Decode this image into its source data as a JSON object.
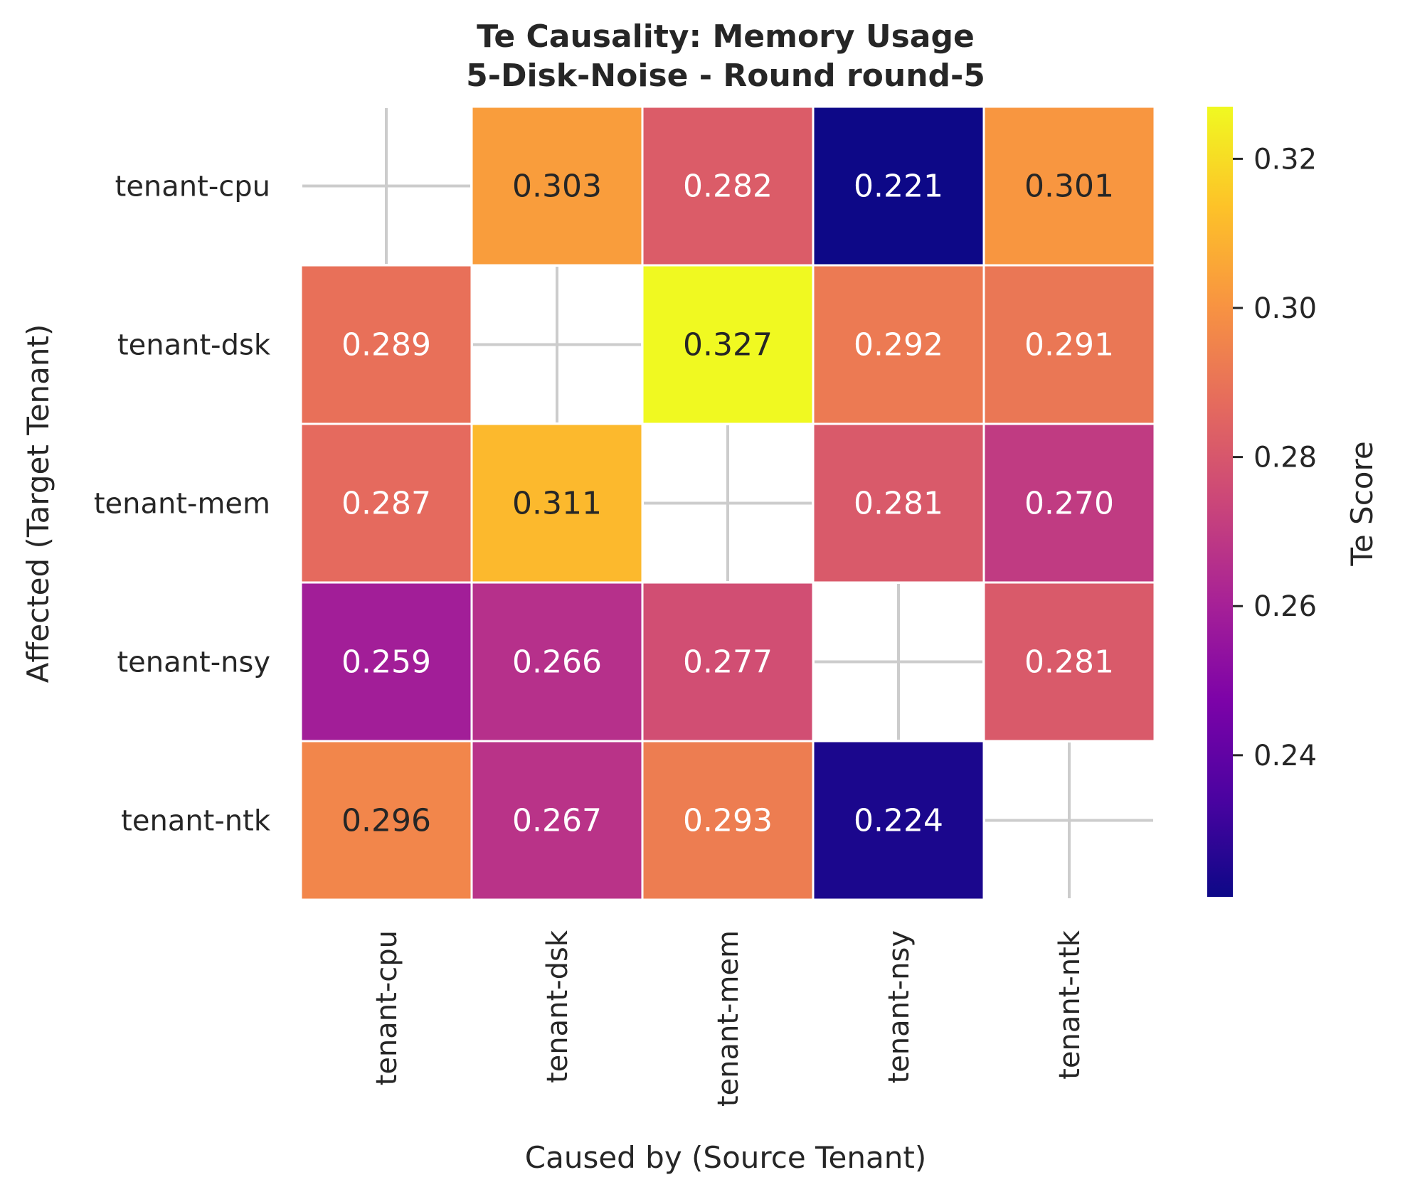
{
  "chart_data": {
    "type": "heatmap",
    "title": "Te Causality: Memory Usage",
    "subtitle": "5-Disk-Noise - Round round-5",
    "xlabel": "Caused by (Source Tenant)",
    "ylabel": "Affected (Target Tenant)",
    "x_categories": [
      "tenant-cpu",
      "tenant-dsk",
      "tenant-mem",
      "tenant-nsy",
      "tenant-ntk"
    ],
    "y_categories": [
      "tenant-cpu",
      "tenant-dsk",
      "tenant-mem",
      "tenant-nsy",
      "tenant-ntk"
    ],
    "values": [
      [
        null,
        0.303,
        0.282,
        0.221,
        0.301
      ],
      [
        0.289,
        null,
        0.327,
        0.292,
        0.291
      ],
      [
        0.287,
        0.311,
        null,
        0.281,
        0.27
      ],
      [
        0.259,
        0.266,
        0.277,
        null,
        0.281
      ],
      [
        0.296,
        0.267,
        0.293,
        0.224,
        null
      ]
    ],
    "value_labels": [
      [
        "",
        "0.303",
        "0.282",
        "0.221",
        "0.301"
      ],
      [
        "0.289",
        "",
        "0.327",
        "0.292",
        "0.291"
      ],
      [
        "0.287",
        "0.311",
        "",
        "0.281",
        "0.270"
      ],
      [
        "0.259",
        "0.266",
        "0.277",
        "",
        "0.281"
      ],
      [
        "0.296",
        "0.267",
        "0.293",
        "0.224",
        ""
      ]
    ],
    "colorscale": "plasma",
    "colorbar": {
      "label": "Te Score",
      "range": [
        0.221,
        0.327
      ],
      "ticks": [
        0.24,
        0.26,
        0.28,
        0.3,
        0.32
      ],
      "tick_labels": [
        "0.24",
        "0.26",
        "0.28",
        "0.30",
        "0.32"
      ]
    },
    "diagonal": "empty with light gray cross",
    "grid": false
  }
}
